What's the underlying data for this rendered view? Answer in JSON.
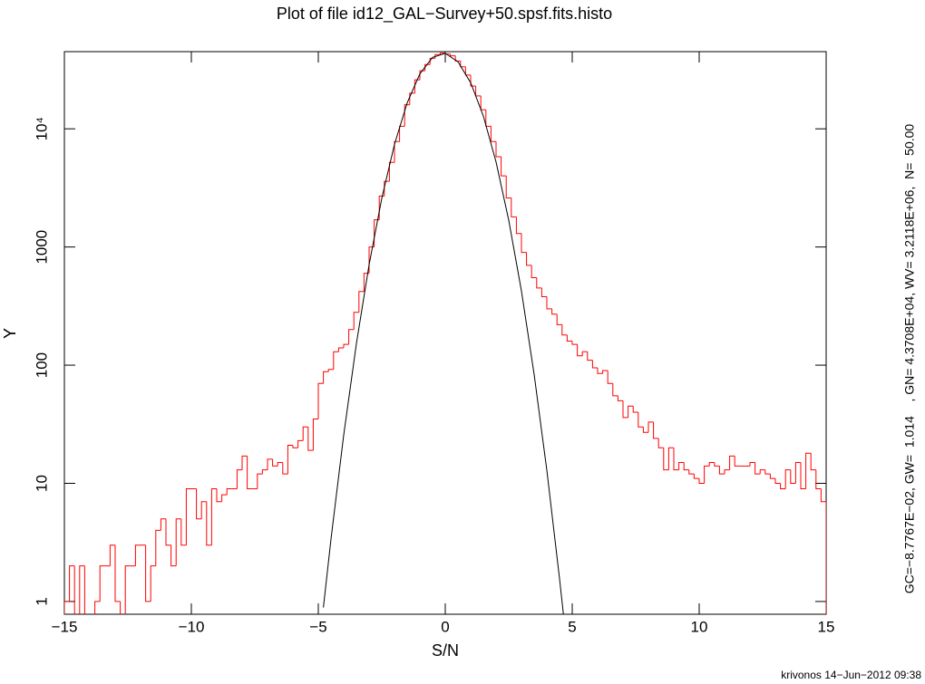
{
  "chart_data": {
    "type": "histogram",
    "title": "Plot of file id12_GAL−Survey+50.spsf.fits.histo",
    "xlabel": "S/N",
    "ylabel": "Y",
    "annotation": "GC=−8.7767E−02, GW=  1.014    , GN= 4.3708E+04, WV= 3.2118E+06,  N=  50.00",
    "footer": "krivonos 14−Jun−2012 09:38",
    "color": "#ff0000",
    "ylog": true,
    "xlim": [
      -15,
      15
    ],
    "ylim": [
      0.78,
      45000
    ],
    "xticks": [
      {
        "value": -15,
        "label": "−15"
      },
      {
        "value": -10,
        "label": "−10"
      },
      {
        "value": -5,
        "label": "−5"
      },
      0,
      5,
      10,
      15
    ],
    "yticks": [
      1,
      10,
      100,
      1000,
      {
        "value": 10000,
        "label": "10⁴"
      }
    ],
    "bins": [
      -15,
      -14.8,
      -14.6,
      -14.4,
      -14.2,
      -14,
      -13.8,
      -13.6,
      -13.4,
      -13.2,
      -13,
      -12.8,
      -12.6,
      -12.4,
      -12.2,
      -12,
      -11.8,
      -11.6,
      -11.4,
      -11.2,
      -11,
      -10.8,
      -10.6,
      -10.4,
      -10.2,
      -10,
      -9.8,
      -9.6,
      -9.4,
      -9.2,
      -9,
      -8.8,
      -8.6,
      -8.4,
      -8.2,
      -8,
      -7.8,
      -7.6,
      -7.4,
      -7.2,
      -7,
      -6.8,
      -6.6,
      -6.4,
      -6.2,
      -6,
      -5.8,
      -5.6,
      -5.4,
      -5.2,
      -5,
      -4.8,
      -4.6,
      -4.4,
      -4.2,
      -4,
      -3.8,
      -3.6,
      -3.4,
      -3.2,
      -3,
      -2.8,
      -2.6,
      -2.4,
      -2.2,
      -2,
      -1.8,
      -1.6,
      -1.4,
      -1.2,
      -1,
      -0.8,
      -0.6,
      -0.4,
      -0.2,
      0,
      0.2,
      0.4,
      0.6,
      0.8,
      1,
      1.2,
      1.4,
      1.6,
      1.8,
      2,
      2.2,
      2.4,
      2.6,
      2.8,
      3,
      3.2,
      3.4,
      3.6,
      3.8,
      4,
      4.2,
      4.4,
      4.6,
      4.8,
      5,
      5.2,
      5.4,
      5.6,
      5.8,
      6,
      6.2,
      6.4,
      6.6,
      6.8,
      7,
      7.2,
      7.4,
      7.6,
      7.8,
      8,
      8.2,
      8.4,
      8.6,
      8.8,
      9,
      9.2,
      9.4,
      9.6,
      9.8,
      10,
      10.2,
      10.4,
      10.6,
      10.8,
      11,
      11.2,
      11.4,
      11.6,
      11.8,
      12,
      12.2,
      12.4,
      12.6,
      12.8,
      13,
      13.2,
      13.4,
      13.6,
      13.8,
      14,
      14.2,
      14.4,
      14.6,
      14.8,
      15
    ],
    "counts": [
      1,
      2,
      0,
      2,
      0,
      0,
      1,
      2,
      2,
      3,
      1,
      0,
      2,
      2,
      3,
      3,
      1,
      2,
      4,
      5,
      3,
      2,
      5,
      3,
      9,
      9,
      5,
      7,
      3,
      9,
      7,
      8,
      9,
      9,
      13,
      17,
      9,
      9,
      12,
      13,
      16,
      14,
      15,
      12,
      21,
      20,
      23,
      30,
      19,
      35,
      70,
      88,
      92,
      130,
      140,
      150,
      200,
      280,
      420,
      600,
      1000,
      1700,
      2700,
      3600,
      5200,
      7800,
      10500,
      16000,
      20000,
      26000,
      31000,
      35000,
      39500,
      42500,
      43700,
      43000,
      41500,
      37500,
      33500,
      28500,
      23000,
      19000,
      14500,
      10500,
      7800,
      5800,
      4000,
      2600,
      1800,
      1300,
      900,
      700,
      550,
      450,
      380,
      300,
      270,
      220,
      180,
      160,
      150,
      120,
      130,
      110,
      95,
      85,
      90,
      70,
      55,
      50,
      36,
      45,
      40,
      30,
      27,
      33,
      24,
      20,
      13,
      20,
      13,
      15,
      13,
      12,
      11,
      10,
      14,
      15,
      14,
      12,
      13,
      17,
      14,
      14,
      14,
      15,
      12,
      13,
      12,
      11,
      10,
      9,
      13,
      10,
      15,
      9,
      18,
      13,
      9,
      7
    ],
    "fit": {
      "type": "line",
      "color": "#000000",
      "x": [
        -4.8,
        -4.5,
        -4,
        -3.5,
        -3,
        -2.5,
        -2,
        -1.5,
        -1,
        -0.5,
        0,
        0.5,
        1,
        1.5,
        2,
        2.5,
        3,
        3.5,
        4,
        4.5,
        4.7
      ],
      "values": [
        0.89,
        3.38,
        25.6,
        152,
        707,
        2582,
        7387,
        16580,
        29166,
        40247,
        43544,
        36946,
        24582,
        12824,
        5245,
        1683,
        424,
        83.5,
        12.9,
        1.56,
        0.63
      ]
    }
  }
}
